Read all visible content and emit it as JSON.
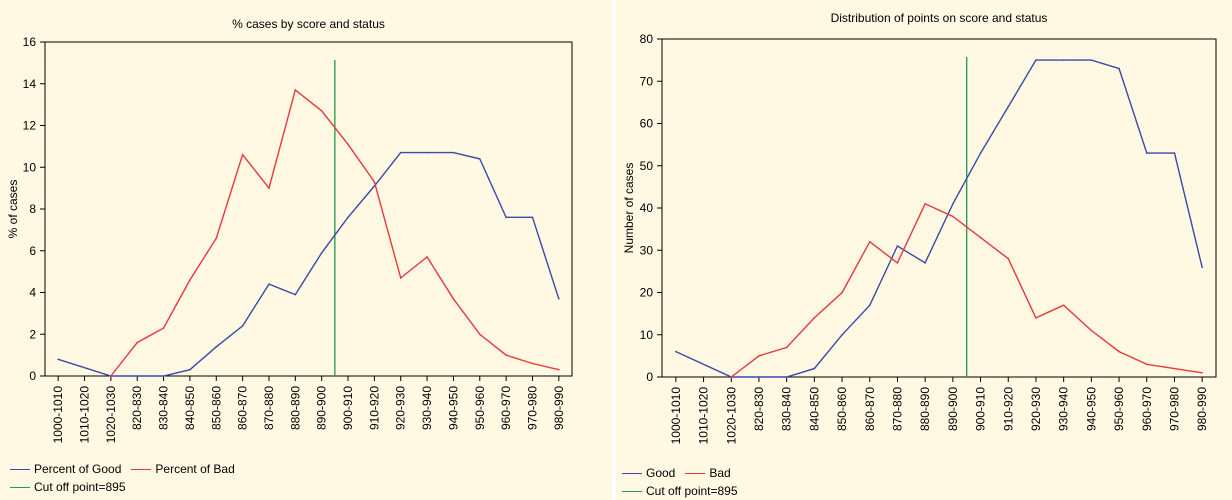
{
  "colors": {
    "good": "#3b4aa8",
    "bad": "#e8383d",
    "cutoff": "#1f9a45",
    "panel_bg": "#fff8e3"
  },
  "chart_data": [
    {
      "type": "line",
      "title": "% cases by score and status",
      "xlabel": "",
      "ylabel": "% of cases",
      "ylim": [
        0,
        16
      ],
      "yticks": [
        0,
        2,
        4,
        6,
        8,
        10,
        12,
        14,
        16
      ],
      "grid": false,
      "legend_position": "bottom-left",
      "categories": [
        "1000-1010",
        "1010-1020",
        "1020-1030",
        "820-830",
        "830-840",
        "840-850",
        "850-860",
        "860-870",
        "870-880",
        "880-890",
        "890-900",
        "900-910",
        "910-920",
        "920-930",
        "930-940",
        "940-950",
        "950-960",
        "960-970",
        "970-980",
        "980-990"
      ],
      "series": [
        {
          "name": "Percent of Good",
          "color_key": "good",
          "values": [
            0.8,
            null,
            0,
            null,
            0,
            0.3,
            1.4,
            2.4,
            4.4,
            3.9,
            5.9,
            7.6,
            9.1,
            10.7,
            10.7,
            10.7,
            10.4,
            7.6,
            7.6,
            3.7
          ]
        },
        {
          "name": "Percent of Bad",
          "color_key": "bad",
          "values": [
            null,
            null,
            0,
            1.6,
            2.3,
            4.6,
            6.6,
            10.6,
            9.0,
            13.7,
            12.7,
            11.1,
            9.3,
            4.7,
            5.7,
            3.7,
            2.0,
            1.0,
            0.6,
            0.3
          ]
        }
      ],
      "cutoff": {
        "label": "Cut off point=895",
        "position_between": [
          "890-900",
          "900-910"
        ],
        "color_key": "cutoff"
      }
    },
    {
      "type": "line",
      "title": "Distribution of points on score and status",
      "xlabel": "",
      "ylabel": "Number of cases",
      "ylim": [
        0,
        80
      ],
      "yticks": [
        0,
        10,
        20,
        30,
        40,
        50,
        60,
        70,
        80
      ],
      "grid": false,
      "legend_position": "bottom-left",
      "categories": [
        "1000-1010",
        "1010-1020",
        "1020-1030",
        "820-830",
        "830-840",
        "840-850",
        "850-860",
        "860-870",
        "870-880",
        "880-890",
        "890-900",
        "900-910",
        "910-920",
        "920-930",
        "930-940",
        "940-950",
        "950-960",
        "960-970",
        "970-980",
        "980-990"
      ],
      "series": [
        {
          "name": "Good",
          "color_key": "good",
          "values": [
            6,
            null,
            0,
            null,
            0,
            2,
            10,
            17,
            31,
            27,
            41,
            53,
            64,
            75,
            75,
            75,
            73,
            53,
            53,
            26
          ]
        },
        {
          "name": "Bad",
          "color_key": "bad",
          "values": [
            null,
            null,
            0,
            5,
            7,
            14,
            20,
            32,
            27,
            41,
            38,
            33,
            28,
            14,
            17,
            11,
            6,
            3,
            2,
            1
          ]
        }
      ],
      "cutoff": {
        "label": "Cut off point=895",
        "position_between": [
          "890-900",
          "900-910"
        ],
        "color_key": "cutoff"
      }
    }
  ]
}
